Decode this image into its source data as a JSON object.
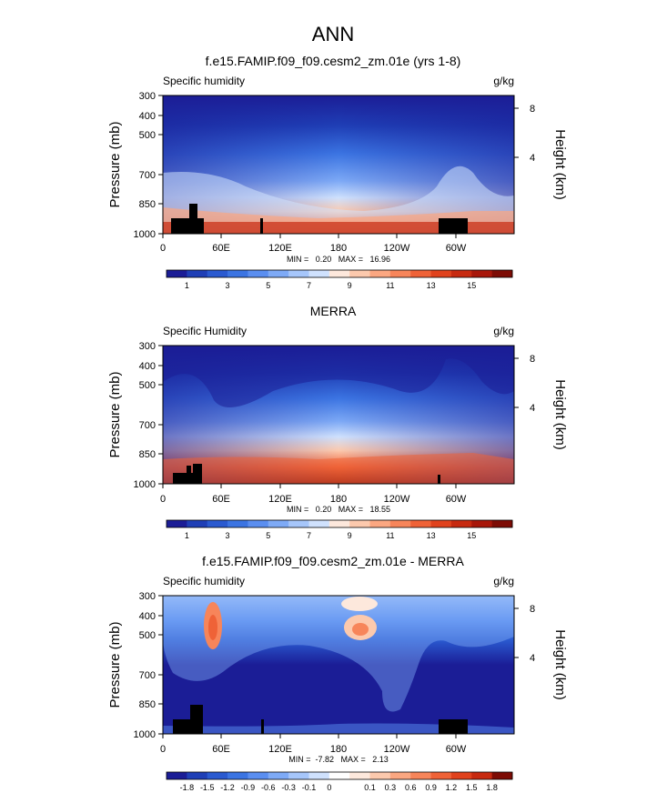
{
  "figure_title": "ANN",
  "chart_data": [
    {
      "type": "contour",
      "panel": "model",
      "title": "f.e15.FAMIP.f09_f09.cesm2_zm.01e (yrs 1-8)",
      "field_label": "Specific humidity",
      "units": "g/kg",
      "ylabel": "Pressure (mb)",
      "ylabel_right": "Height (km)",
      "x_ticks": [
        "0",
        "60E",
        "120E",
        "180",
        "120W",
        "60W"
      ],
      "y_ticks": [
        "300",
        "400",
        "500",
        "700",
        "850",
        "1000"
      ],
      "right_ticks": [
        "8",
        "4"
      ],
      "min_max_text": "MIN =   0.20   MAX =   16.96",
      "colorbar_labels": [
        "1",
        "3",
        "5",
        "7",
        "9",
        "11",
        "13",
        "15"
      ],
      "colorbar_colors": [
        "#1b1d96",
        "#1f3fb6",
        "#2a5ad0",
        "#3b74e2",
        "#5a8ef0",
        "#7eaaf6",
        "#a6c6fa",
        "#cfe1fd",
        "#fde8dc",
        "#fcc9ad",
        "#fba781",
        "#f7855a",
        "#ef6237",
        "#e0421d",
        "#c72a10",
        "#a8170a",
        "#7d0c05"
      ]
    },
    {
      "type": "contour",
      "panel": "obs",
      "title": "MERRA",
      "field_label": "Specific Humidity",
      "units": "g/kg",
      "ylabel": "Pressure (mb)",
      "ylabel_right": "Height (km)",
      "x_ticks": [
        "0",
        "60E",
        "120E",
        "180",
        "120W",
        "60W"
      ],
      "y_ticks": [
        "300",
        "400",
        "500",
        "700",
        "850",
        "1000"
      ],
      "right_ticks": [
        "8",
        "4"
      ],
      "min_max_text": "MIN =   0.20   MAX =   18.55",
      "colorbar_labels": [
        "1",
        "3",
        "5",
        "7",
        "9",
        "11",
        "13",
        "15"
      ],
      "colorbar_colors": [
        "#1b1d96",
        "#1f3fb6",
        "#2a5ad0",
        "#3b74e2",
        "#5a8ef0",
        "#7eaaf6",
        "#a6c6fa",
        "#cfe1fd",
        "#fde8dc",
        "#fcc9ad",
        "#fba781",
        "#f7855a",
        "#ef6237",
        "#e0421d",
        "#c72a10",
        "#a8170a",
        "#7d0c05"
      ]
    },
    {
      "type": "contour",
      "panel": "diff",
      "title": "f.e15.FAMIP.f09_f09.cesm2_zm.01e - MERRA",
      "field_label": "Specific humidity",
      "units": "g/kg",
      "ylabel": "Pressure (mb)",
      "ylabel_right": "Height (km)",
      "x_ticks": [
        "0",
        "60E",
        "120E",
        "180",
        "120W",
        "60W"
      ],
      "y_ticks": [
        "300",
        "400",
        "500",
        "700",
        "850",
        "1000"
      ],
      "right_ticks": [
        "8",
        "4"
      ],
      "min_max_text": "MIN =  -7.82   MAX =   2.13",
      "colorbar_labels": [
        "-1.8",
        "-1.5",
        "-1.2",
        "-0.9",
        "-0.6",
        "-0.3",
        "-0.1",
        "0",
        "0.1",
        "0.3",
        "0.6",
        "0.9",
        "1.2",
        "1.5",
        "1.8"
      ],
      "colorbar_colors": [
        "#1b1d96",
        "#1f3fb6",
        "#2a5ad0",
        "#3b74e2",
        "#5a8ef0",
        "#7eaaf6",
        "#a6c6fa",
        "#cfe1fd",
        "#ffffff",
        "#fde8dc",
        "#fcc9ad",
        "#fba781",
        "#f7855a",
        "#ef6237",
        "#e0421d",
        "#c72a10",
        "#7d0c05"
      ]
    }
  ]
}
